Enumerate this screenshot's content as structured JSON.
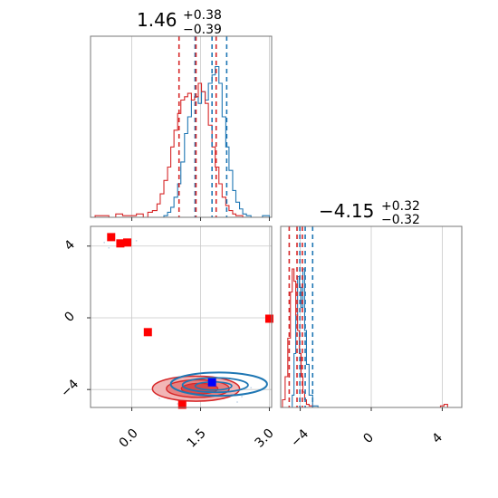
{
  "chart_data": [
    {
      "type": "histogram",
      "panel": "top-left",
      "title": "1.46",
      "title_sup": "+0.38",
      "title_sub": "−0.39",
      "xlim": [
        -0.9,
        3.05
      ],
      "grid": true,
      "bins": [
        -0.8,
        -0.65,
        -0.5,
        -0.35,
        -0.2,
        -0.05,
        0.1,
        0.25,
        0.35,
        0.45,
        0.55,
        0.62,
        0.7,
        0.78,
        0.85,
        0.92,
        1.0,
        1.07,
        1.15,
        1.22,
        1.3,
        1.37,
        1.45,
        1.52,
        1.6,
        1.67,
        1.75,
        1.82,
        1.9,
        1.97,
        2.05,
        2.12,
        2.2,
        2.27,
        2.35,
        2.42,
        2.5,
        2.6,
        2.7,
        2.85,
        3.0
      ],
      "series": [
        {
          "name": "",
          "color": "#1f77b4",
          "values": [
            0,
            0,
            0,
            0,
            0,
            0,
            0,
            0,
            0,
            0,
            0,
            0,
            0.01,
            0.03,
            0.06,
            0.12,
            0.2,
            0.33,
            0.5,
            0.6,
            0.7,
            0.72,
            0.68,
            0.75,
            0.7,
            0.8,
            0.85,
            0.9,
            0.8,
            0.6,
            0.42,
            0.28,
            0.16,
            0.09,
            0.05,
            0.02,
            0.01,
            0,
            0,
            0.01
          ],
          "quantile_lines": [
            1.38,
            1.75,
            2.07
          ]
        },
        {
          "name": "",
          "color": "#d62728",
          "values": [
            0.01,
            0.01,
            0,
            0.02,
            0.01,
            0.01,
            0.02,
            0,
            0.03,
            0.04,
            0.08,
            0.14,
            0.22,
            0.3,
            0.42,
            0.52,
            0.62,
            0.7,
            0.72,
            0.74,
            0.7,
            0.72,
            0.8,
            0.75,
            0.68,
            0.55,
            0.42,
            0.3,
            0.2,
            0.12,
            0.07,
            0.04,
            0.02,
            0.01,
            0.01,
            0,
            0,
            0,
            0,
            0
          ],
          "quantile_lines": [
            1.03,
            1.4,
            1.84
          ]
        }
      ]
    },
    {
      "type": "histogram",
      "panel": "bottom-right",
      "title": "−4.15",
      "title_sup": "+0.32",
      "title_sub": "−0.32",
      "xlim": [
        -5.1,
        5.1
      ],
      "xticks": [
        "−4",
        "0",
        "4"
      ],
      "grid": true,
      "bins": [
        -5.0,
        -4.85,
        -4.7,
        -4.55,
        -4.45,
        -4.35,
        -4.25,
        -4.15,
        -4.05,
        -3.95,
        -3.85,
        -3.75,
        -3.65,
        -3.5,
        -3.3,
        -3.0,
        3.9,
        4.1,
        4.3
      ],
      "series": [
        {
          "name": "",
          "color": "#1f77b4",
          "values": [
            0,
            0,
            0,
            0,
            0.08,
            0.35,
            0.6,
            0.85,
            0.78,
            0.65,
            0.9,
            0.5,
            0.28,
            0.08,
            0.01,
            0,
            0,
            0
          ],
          "quantile_lines": [
            -4.02,
            -3.72,
            -3.3
          ]
        },
        {
          "name": "",
          "color": "#d62728",
          "values": [
            0.05,
            0.2,
            0.45,
            0.75,
            0.9,
            0.82,
            0.6,
            0.5,
            0.35,
            0.2,
            0.1,
            0.05,
            0.02,
            0.01,
            0,
            0,
            0.01,
            0.02
          ],
          "quantile_lines": [
            -4.62,
            -4.18,
            -3.88
          ]
        }
      ]
    },
    {
      "type": "scatter",
      "panel": "bottom-left",
      "xlim": [
        -0.9,
        3.05
      ],
      "ylim": [
        -5.0,
        5.1
      ],
      "xticks": [
        "0.0",
        "1.5",
        "3.0"
      ],
      "yticks": [
        "4",
        "0",
        "−4"
      ],
      "grid": true,
      "series": [
        {
          "name": "",
          "color": "#1f77b4",
          "contour_center": [
            1.9,
            -3.7
          ],
          "contour_extent": [
            1.05,
            0.65
          ],
          "points": [
            [
              1.75,
              -3.6
            ]
          ]
        },
        {
          "name": "",
          "color": "#d62728",
          "contour_center": [
            1.4,
            -3.95
          ],
          "contour_extent": [
            0.95,
            0.7
          ],
          "points": [
            [
              -0.45,
              4.5
            ],
            [
              -0.25,
              4.15
            ],
            [
              -0.1,
              4.2
            ],
            [
              0.35,
              -0.8
            ],
            [
              1.1,
              -4.85
            ],
            [
              3.0,
              -0.05
            ]
          ]
        }
      ]
    }
  ]
}
